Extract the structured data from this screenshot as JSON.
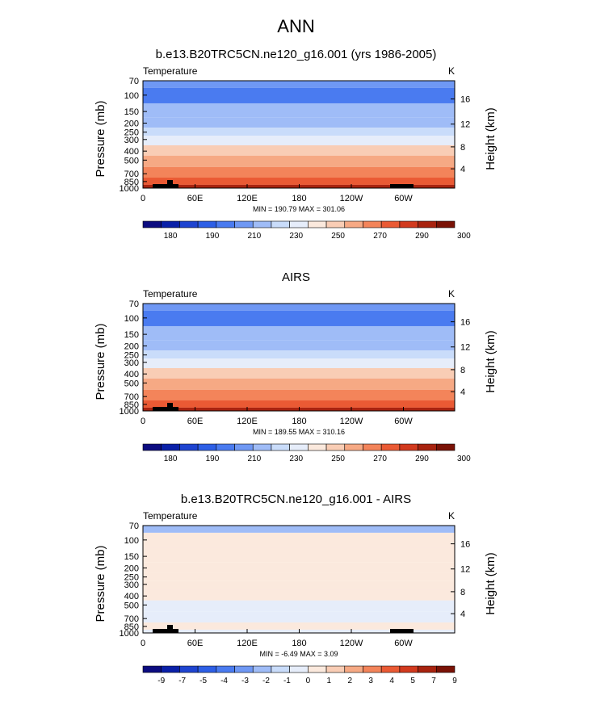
{
  "figure": {
    "title": "ANN"
  },
  "chart_data": [
    {
      "type": "heatmap",
      "title": "b.e13.B20TRC5CN.ne120_g16.001 (yrs 1986-2005)",
      "left_string": "Temperature",
      "right_string": "K",
      "ylabel": "Pressure (mb)",
      "ylabel_right": "Height (km)",
      "xticks": [
        "0",
        "60E",
        "120E",
        "180",
        "120W",
        "60W"
      ],
      "yticks": [
        "70",
        "100",
        "150",
        "200",
        "250",
        "300",
        "400",
        "500",
        "700",
        "850",
        "1000"
      ],
      "yticks_right": [
        "4",
        "8",
        "12",
        "16"
      ],
      "stats": "MIN = 190.79  MAX = 301.06",
      "colorbar_labels": [
        "180",
        "190",
        "210",
        "230",
        "250",
        "270",
        "290",
        "300"
      ],
      "colorbar_colors": [
        "#0c0c80",
        "#0a20a8",
        "#1e44d0",
        "#2d5fe6",
        "#4a7bf0",
        "#6f98f4",
        "#9fbcf7",
        "#c9dcfa",
        "#e6edfa",
        "#fbe9dd",
        "#f9cdb5",
        "#f6a984",
        "#f3845a",
        "#ea5a34",
        "#d23a1e",
        "#a8230f",
        "#7a1206"
      ],
      "levels": [
        {
          "p": 70,
          "v": 205
        },
        {
          "p": 100,
          "v": 200
        },
        {
          "p": 150,
          "v": 212
        },
        {
          "p": 200,
          "v": 220
        },
        {
          "p": 250,
          "v": 230
        },
        {
          "p": 300,
          "v": 240
        },
        {
          "p": 400,
          "v": 253
        },
        {
          "p": 500,
          "v": 263
        },
        {
          "p": 700,
          "v": 278
        },
        {
          "p": 850,
          "v": 288
        },
        {
          "p": 1000,
          "v": 296
        }
      ]
    },
    {
      "type": "heatmap",
      "title": "AIRS",
      "left_string": "Temperature",
      "right_string": "K",
      "ylabel": "Pressure (mb)",
      "ylabel_right": "Height (km)",
      "xticks": [
        "0",
        "60E",
        "120E",
        "180",
        "120W",
        "60W"
      ],
      "yticks": [
        "70",
        "100",
        "150",
        "200",
        "250",
        "300",
        "400",
        "500",
        "700",
        "850",
        "1000"
      ],
      "yticks_right": [
        "4",
        "8",
        "12",
        "16"
      ],
      "stats": "MIN = 189.55  MAX = 310.16",
      "colorbar_labels": [
        "180",
        "190",
        "210",
        "230",
        "250",
        "270",
        "290",
        "300"
      ],
      "colorbar_colors": [
        "#0c0c80",
        "#0a20a8",
        "#1e44d0",
        "#2d5fe6",
        "#4a7bf0",
        "#6f98f4",
        "#9fbcf7",
        "#c9dcfa",
        "#e6edfa",
        "#fbe9dd",
        "#f9cdb5",
        "#f6a984",
        "#f3845a",
        "#ea5a34",
        "#d23a1e",
        "#a8230f",
        "#7a1206"
      ],
      "levels": [
        {
          "p": 70,
          "v": 205
        },
        {
          "p": 100,
          "v": 200
        },
        {
          "p": 150,
          "v": 212
        },
        {
          "p": 200,
          "v": 220
        },
        {
          "p": 250,
          "v": 230
        },
        {
          "p": 300,
          "v": 240
        },
        {
          "p": 400,
          "v": 253
        },
        {
          "p": 500,
          "v": 263
        },
        {
          "p": 700,
          "v": 278
        },
        {
          "p": 850,
          "v": 288
        },
        {
          "p": 1000,
          "v": 296
        }
      ]
    },
    {
      "type": "heatmap",
      "title": "b.e13.B20TRC5CN.ne120_g16.001 - AIRS",
      "left_string": "Temperature",
      "right_string": "K",
      "ylabel": "Pressure (mb)",
      "ylabel_right": "Height (km)",
      "xticks": [
        "0",
        "60E",
        "120E",
        "180",
        "120W",
        "60W"
      ],
      "yticks": [
        "70",
        "100",
        "150",
        "200",
        "250",
        "300",
        "400",
        "500",
        "700",
        "850",
        "1000"
      ],
      "yticks_right": [
        "4",
        "8",
        "12",
        "16"
      ],
      "stats": "MIN = -6.49  MAX =  3.09",
      "colorbar_labels": [
        "-9",
        "-7",
        "-5",
        "-4",
        "-3",
        "-2",
        "-1",
        "0",
        "1",
        "2",
        "3",
        "4",
        "5",
        "7",
        "9"
      ],
      "colorbar_colors": [
        "#0c0c80",
        "#0a20a8",
        "#1e44d0",
        "#2d5fe6",
        "#4a7bf0",
        "#6f98f4",
        "#9fbcf7",
        "#c9dcfa",
        "#e6edfa",
        "#fbe9dd",
        "#f9cdb5",
        "#f6a984",
        "#f3845a",
        "#ea5a34",
        "#d23a1e",
        "#a8230f",
        "#7a1206"
      ],
      "levels": [
        {
          "p": 70,
          "v": -2
        },
        {
          "p": 100,
          "v": 0.5
        },
        {
          "p": 150,
          "v": 0.5
        },
        {
          "p": 200,
          "v": 0.5
        },
        {
          "p": 250,
          "v": 1
        },
        {
          "p": 300,
          "v": 0.5
        },
        {
          "p": 400,
          "v": 0.5
        },
        {
          "p": 500,
          "v": -0.5
        },
        {
          "p": 700,
          "v": -0.5
        },
        {
          "p": 850,
          "v": 0.5
        },
        {
          "p": 1000,
          "v": -0.5
        }
      ]
    }
  ]
}
